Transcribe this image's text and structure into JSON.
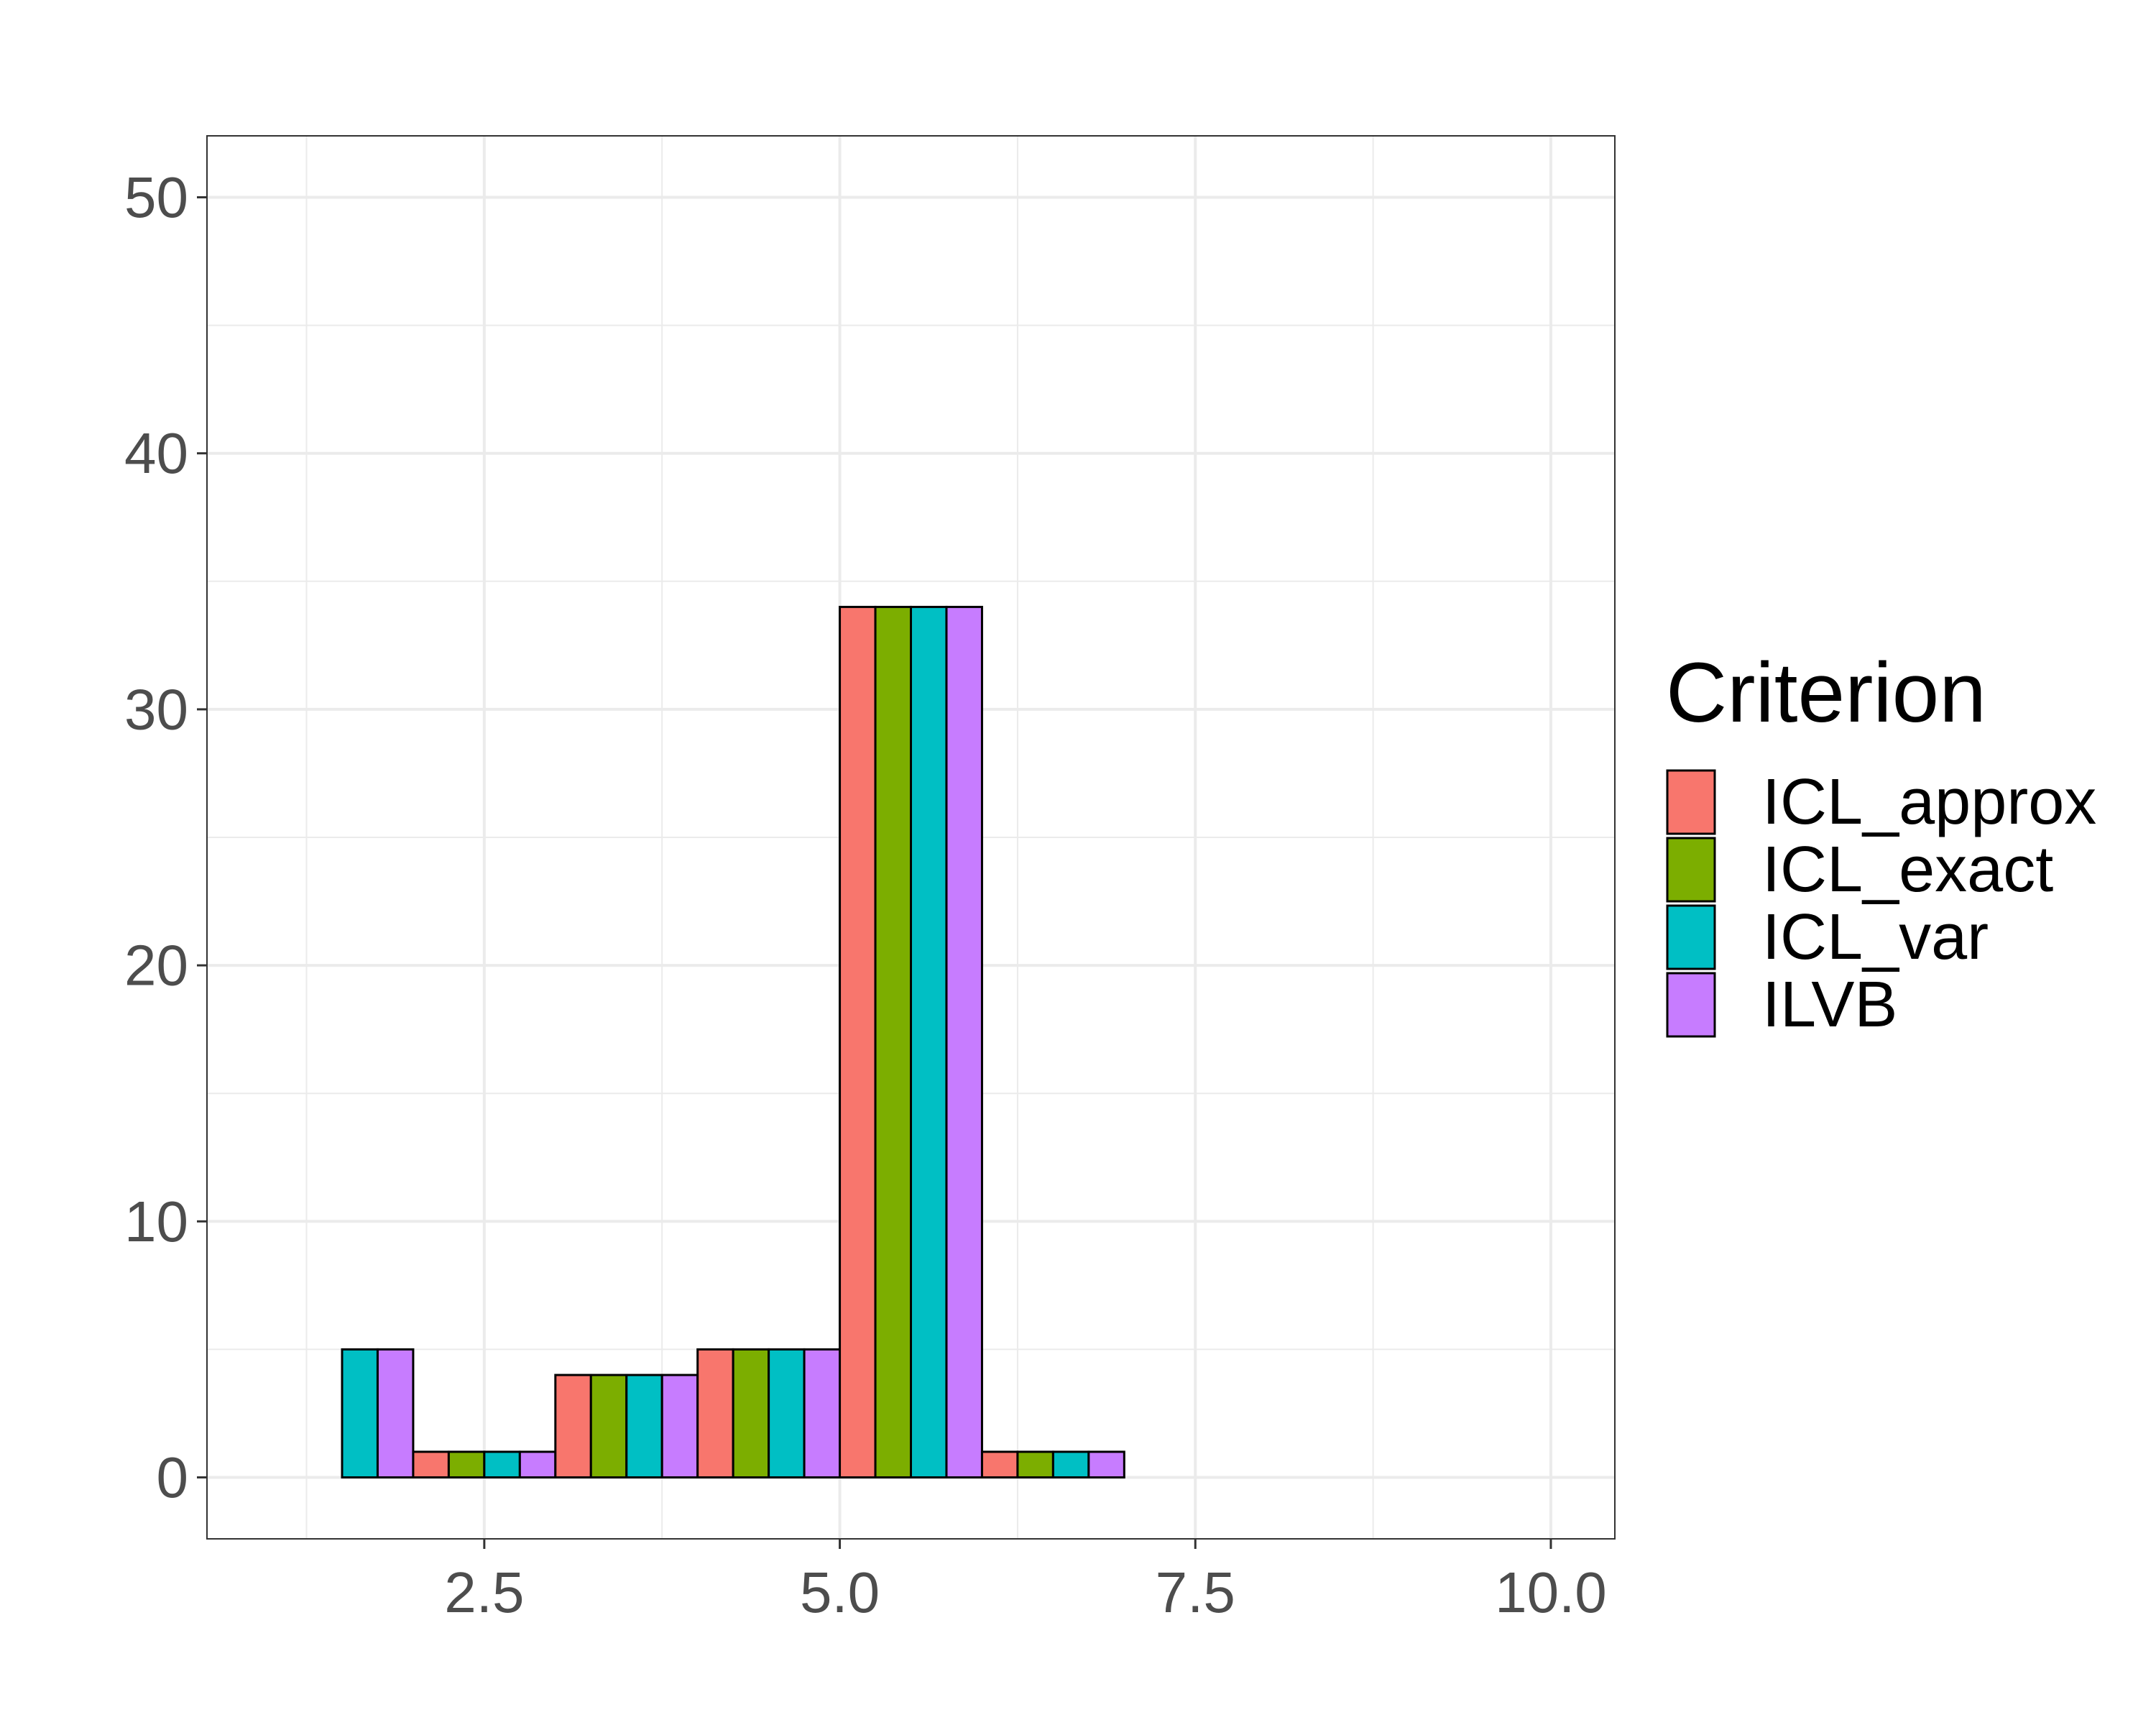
{
  "chart_data": {
    "type": "bar",
    "x": [
      1.5,
      2.5,
      3.5,
      4.5,
      5.5,
      6.5
    ],
    "series": [
      {
        "name": "ICL_approx",
        "color": "#F8766D",
        "values": [
          0,
          1,
          4,
          5,
          34,
          1
        ]
      },
      {
        "name": "ICL_exact",
        "color": "#7CAE00",
        "values": [
          0,
          1,
          4,
          5,
          34,
          1
        ]
      },
      {
        "name": "ICL_var",
        "color": "#00BFC4",
        "values": [
          5,
          1,
          4,
          5,
          34,
          1
        ]
      },
      {
        "name": "ILVB",
        "color": "#C77CFF",
        "values": [
          5,
          1,
          4,
          5,
          34,
          1
        ]
      }
    ],
    "xlim": [
      0.55,
      10.45
    ],
    "ylim": [
      -2.4,
      52.4
    ],
    "x_ticks": [
      2.5,
      5.0,
      7.5,
      10.0
    ],
    "x_tick_labels": [
      "2.5",
      "5.0",
      "7.5",
      "10.0"
    ],
    "y_ticks": [
      0,
      10,
      20,
      30,
      40,
      50
    ],
    "y_tick_labels": [
      "0",
      "10",
      "20",
      "30",
      "40",
      "50"
    ],
    "grid": true,
    "legend": {
      "title": "Criterion",
      "position": "right"
    }
  }
}
